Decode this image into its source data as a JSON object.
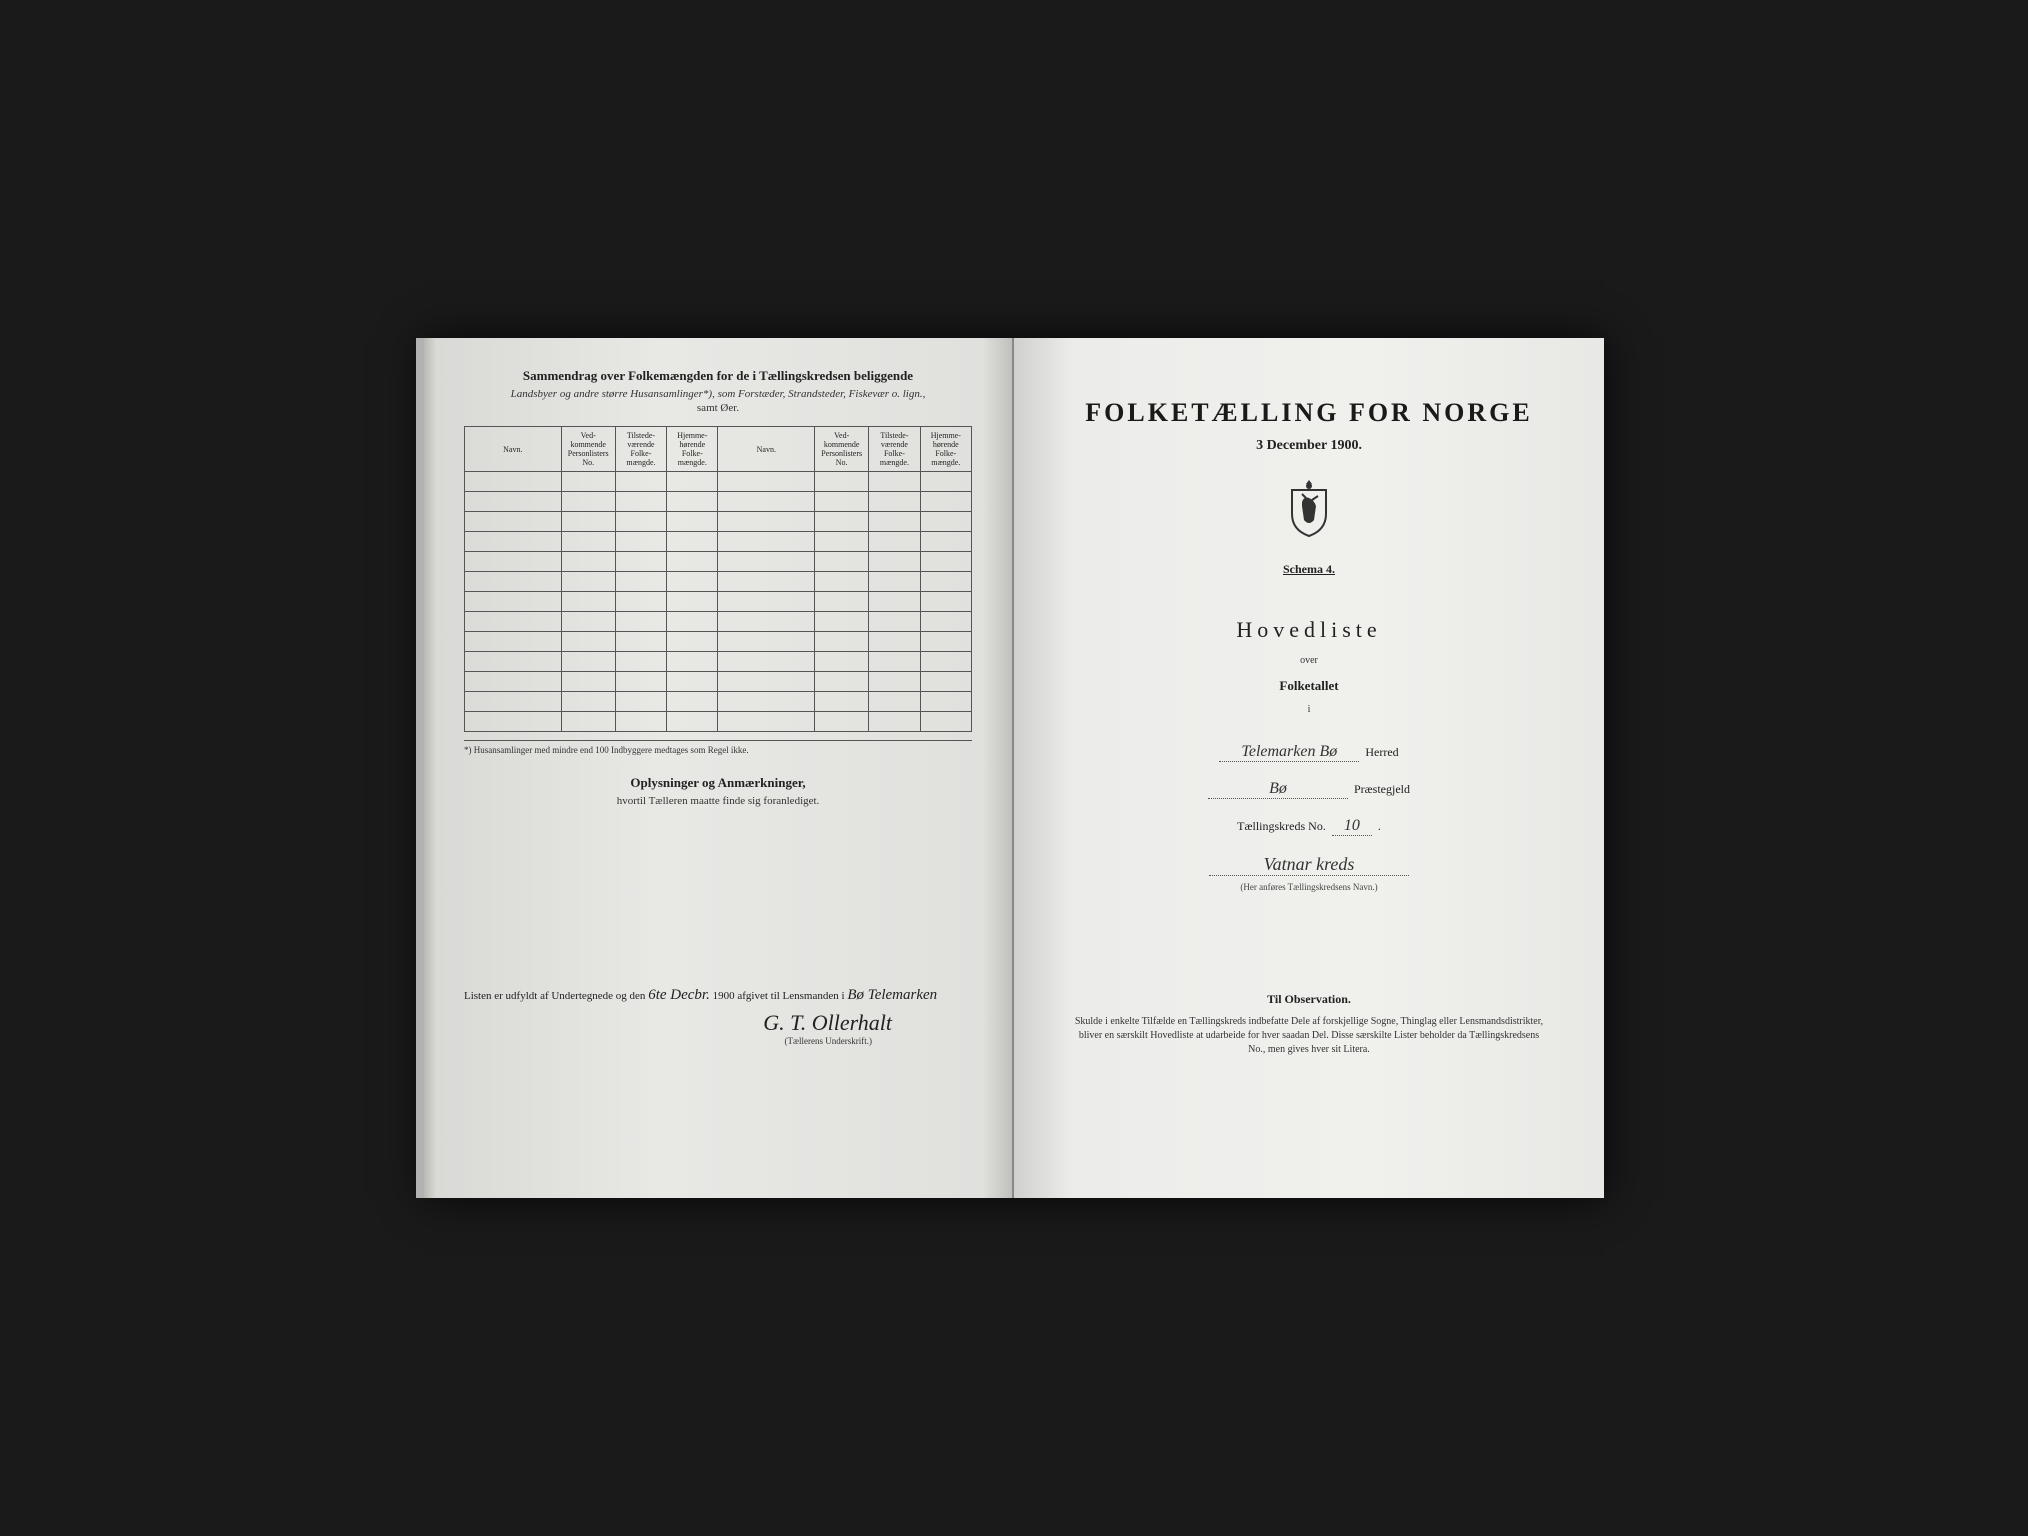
{
  "left": {
    "title": "Sammendrag over Folkemængden for de i Tællingskredsen beliggende",
    "subtitle": "Landsbyer og andre større Husansamlinger*), som Forstæder, Strandsteder, Fiskevær o. lign.,",
    "subtitle2": "samt Øer.",
    "columns": [
      "Navn.",
      "Ved-kommende Personlisters No.",
      "Tilstede-værende Folke-mængde.",
      "Hjemme-hørende Folke-mængde.",
      "Navn.",
      "Ved-kommende Personlisters No.",
      "Tilstede-værende Folke-mængde.",
      "Hjemme-hørende Folke-mængde."
    ],
    "row_count": 13,
    "footnote": "*) Husansamlinger med mindre end 100 Indbyggere medtages som Regel ikke.",
    "oplysninger_title": "Oplysninger og Anmærkninger,",
    "oplysninger_sub": "hvortil Tælleren maatte finde sig foranlediget.",
    "bottom_text_1": "Listen er udfyldt af Undertegnede og den ",
    "bottom_date": "6te Decbr.",
    "bottom_text_2": " 1900 afgivet til Lensmanden i ",
    "bottom_place": "Bø Telemarken",
    "signature": "G. T. Ollerhalt",
    "sig_label": "(Tællerens Underskrift.)"
  },
  "right": {
    "title": "FOLKETÆLLING FOR NORGE",
    "date": "3 December 1900.",
    "schema": "Schema 4.",
    "hovedliste": "Hovedliste",
    "over": "over",
    "folketallet": "Folketallet",
    "i": "i",
    "herred_value": "Telemarken Bø",
    "herred_label": "Herred",
    "praestegjeld_value": "Bø",
    "praestegjeld_label": "Præstegjeld",
    "kreds_no_label": "Tællingskreds No.",
    "kreds_no": "10",
    "kreds_name": "Vatnar kreds",
    "kreds_note": "(Her anføres Tællingskredsens Navn.)",
    "observation_title": "Til Observation.",
    "observation_text": "Skulde i enkelte Tilfælde en Tællingskreds indbefatte Dele af forskjellige Sogne, Thinglag eller Lensmandsdistrikter, bliver en særskilt Hovedliste at udarbeide for hver saadan Del. Disse særskilte Lister beholder da Tællingskredsens No., men gives hver sit Litera."
  },
  "colors": {
    "text": "#222222",
    "paper_left": "#e0e0dd",
    "paper_right": "#ececea",
    "border": "#555555",
    "background": "#1a1a1a"
  }
}
